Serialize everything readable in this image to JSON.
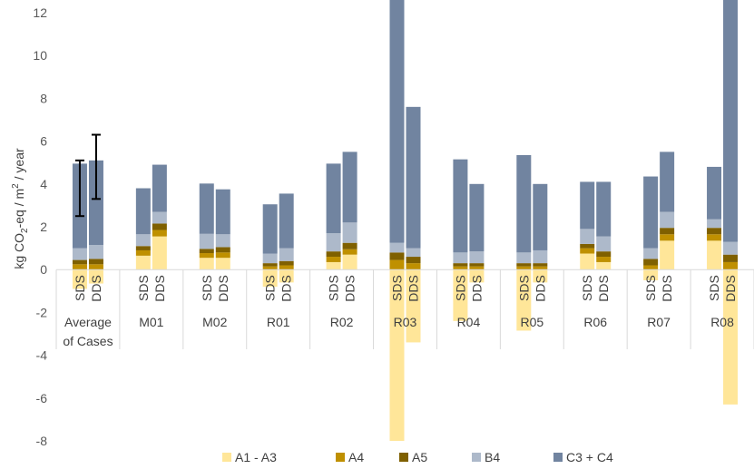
{
  "chart_data": {
    "type": "bar",
    "stacked": true,
    "ylabel_parts": [
      "kg CO",
      "2",
      "-eq / m",
      "2",
      " / year"
    ],
    "ylim": [
      -8,
      12
    ],
    "yticks": [
      -8,
      -6,
      -4,
      -2,
      0,
      2,
      4,
      6,
      8,
      10,
      12
    ],
    "grid": false,
    "legend_position": "bottom",
    "sub_labels": [
      "SDS",
      "DDS"
    ],
    "groups": [
      {
        "label_lines": [
          "Average",
          "of Cases"
        ],
        "error_bars": [
          {
            "low": 2.5,
            "high": 5.1
          },
          {
            "low": 3.3,
            "high": 6.3
          }
        ]
      },
      {
        "label_lines": [
          "M01"
        ]
      },
      {
        "label_lines": [
          "M02"
        ]
      },
      {
        "label_lines": [
          "R01"
        ]
      },
      {
        "label_lines": [
          "R02"
        ]
      },
      {
        "label_lines": [
          "R03"
        ]
      },
      {
        "label_lines": [
          "R04"
        ]
      },
      {
        "label_lines": [
          "R05"
        ]
      },
      {
        "label_lines": [
          "R06"
        ]
      },
      {
        "label_lines": [
          "R07"
        ]
      },
      {
        "label_lines": [
          "R08"
        ]
      }
    ],
    "series": [
      {
        "name": "A1 - A3",
        "color": "#FFE699",
        "sds": [
          -0.9,
          0.65,
          0.55,
          -0.8,
          0.35,
          -8.0,
          -2.4,
          -2.85,
          0.75,
          -0.5,
          1.35
        ],
        "dds": [
          -0.65,
          1.55,
          0.55,
          -0.6,
          0.7,
          -3.4,
          -0.6,
          -0.6,
          0.35,
          1.35,
          -6.3
        ]
      },
      {
        "name": "A4",
        "color": "#BF9000",
        "sds": [
          0.25,
          0.25,
          0.22,
          0.15,
          0.25,
          0.45,
          0.15,
          0.15,
          0.25,
          0.2,
          0.3
        ],
        "dds": [
          0.25,
          0.3,
          0.25,
          0.2,
          0.25,
          0.3,
          0.15,
          0.15,
          0.25,
          0.3,
          0.35
        ]
      },
      {
        "name": "A5",
        "color": "#7F6000",
        "sds": [
          0.2,
          0.2,
          0.2,
          0.15,
          0.25,
          0.35,
          0.15,
          0.15,
          0.2,
          0.3,
          0.3
        ],
        "dds": [
          0.25,
          0.3,
          0.25,
          0.2,
          0.3,
          0.3,
          0.15,
          0.15,
          0.25,
          0.3,
          0.35
        ]
      },
      {
        "name": "B4",
        "color": "#ADB9CA",
        "sds": [
          0.55,
          0.55,
          0.7,
          0.45,
          0.85,
          0.45,
          0.5,
          0.5,
          0.7,
          0.5,
          0.4
        ],
        "dds": [
          0.65,
          0.55,
          0.6,
          0.6,
          0.95,
          0.4,
          0.55,
          0.6,
          0.7,
          0.75,
          0.6
        ]
      },
      {
        "name": "C3 + C4",
        "color": "#7184A0",
        "sds": [
          3.95,
          2.15,
          2.35,
          2.3,
          3.25,
          13.5,
          4.35,
          4.55,
          2.2,
          3.35,
          2.45
        ],
        "dds": [
          3.95,
          2.2,
          2.1,
          2.55,
          3.3,
          6.6,
          3.15,
          3.1,
          2.55,
          2.8,
          12.5
        ]
      }
    ]
  }
}
